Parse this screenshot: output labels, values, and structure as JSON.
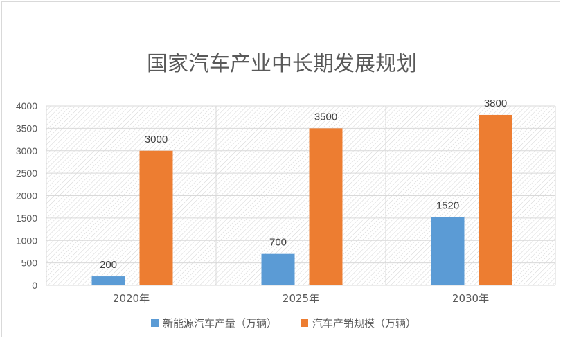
{
  "chart_data": {
    "type": "bar",
    "title": "国家汽车产业中长期发展规划",
    "categories": [
      "2020年",
      "2025年",
      "2030年"
    ],
    "series": [
      {
        "name": "新能源汽车产量（万辆）",
        "values": [
          200,
          700,
          1520
        ],
        "color": "#5b9bd5"
      },
      {
        "name": "汽车产销规模（万辆）",
        "values": [
          3000,
          3500,
          3800
        ],
        "color": "#ed7d31"
      }
    ],
    "ylim": [
      0,
      4000
    ],
    "yticks": [
      0,
      500,
      1000,
      1500,
      2000,
      2500,
      3000,
      3500,
      4000
    ],
    "grid": true,
    "legend": "bottom",
    "data_labels": true
  }
}
